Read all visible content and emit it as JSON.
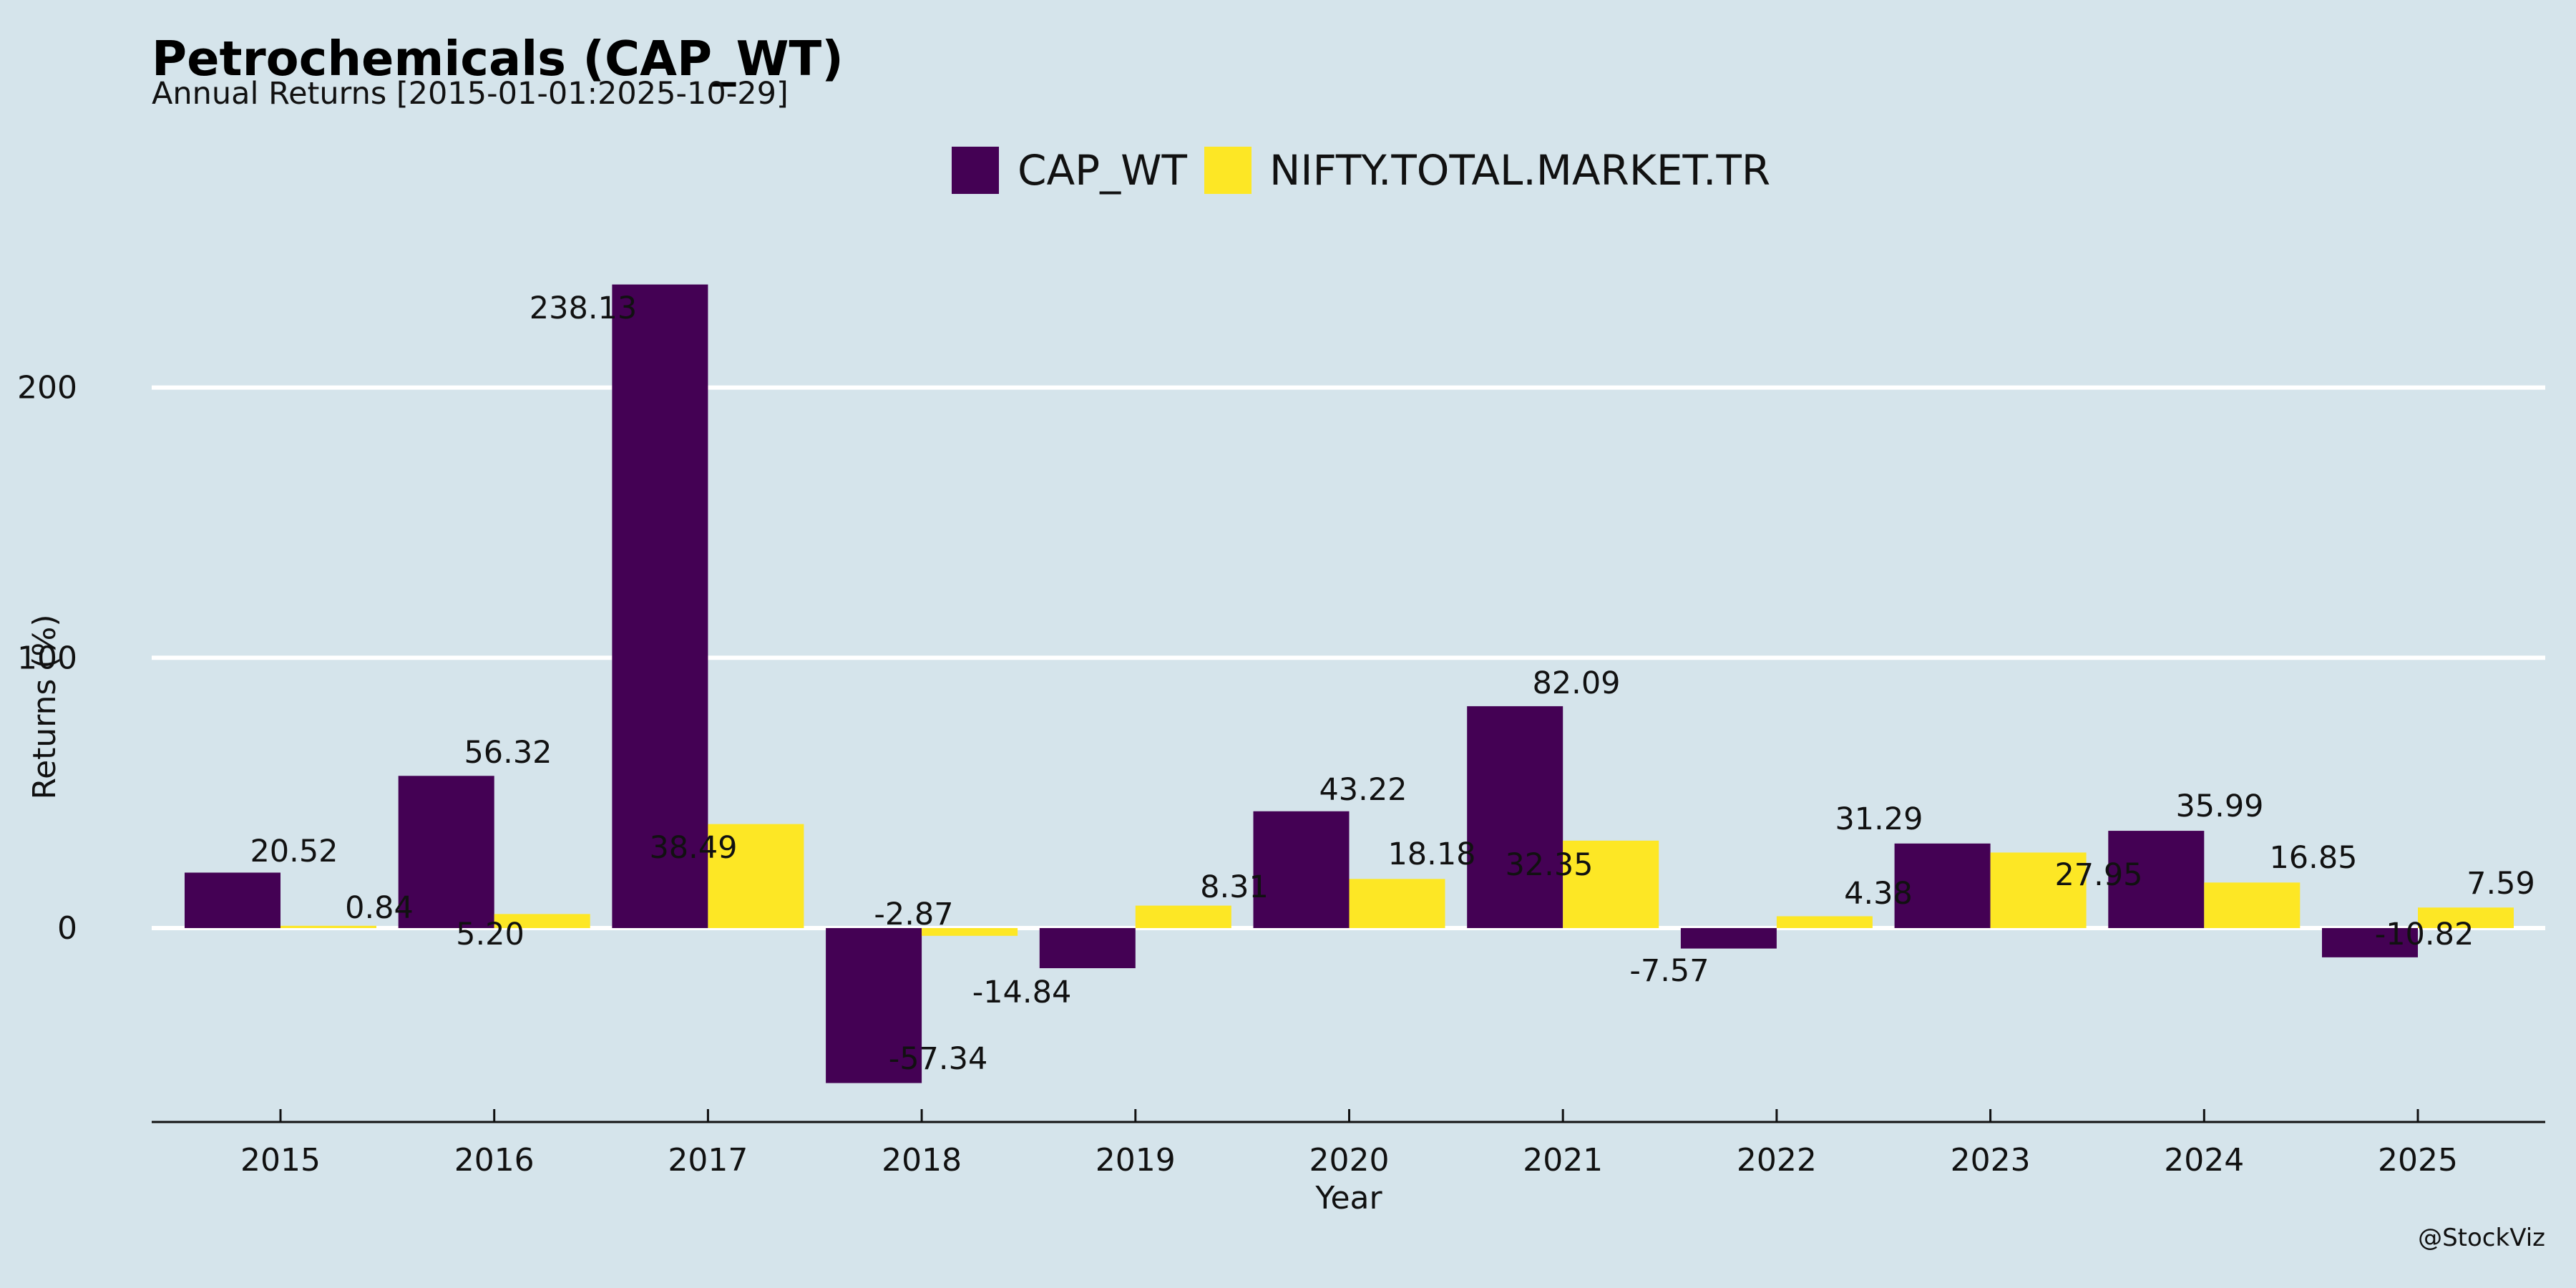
{
  "chart_data": {
    "type": "bar",
    "title": "Petrochemicals (CAP_WT)",
    "subtitle": "Annual Returns [2015-01-01:2025-10-29]",
    "xlabel": "Year",
    "ylabel": "Returns (%)",
    "credit": "@StockViz",
    "categories": [
      "2015",
      "2016",
      "2017",
      "2018",
      "2019",
      "2020",
      "2021",
      "2022",
      "2023",
      "2024",
      "2025"
    ],
    "ylim": [
      -72,
      260
    ],
    "yticks": [
      0,
      100,
      200
    ],
    "ytick_labels": [
      "0",
      "100",
      "200"
    ],
    "grid": "horizontal",
    "legend_position": "top-center",
    "series": [
      {
        "name": "CAP_WT",
        "color": "#440154",
        "values": [
          20.52,
          56.32,
          238.13,
          -57.34,
          -14.84,
          43.22,
          82.09,
          -7.57,
          31.29,
          35.99,
          -10.82
        ],
        "labels": [
          "20.52",
          "56.32",
          "238.13",
          "-57.34",
          "-14.84",
          "43.22",
          "82.09",
          "-7.57",
          "31.29",
          "35.99",
          "-10.82"
        ]
      },
      {
        "name": "NIFTY.TOTAL.MARKET.TR",
        "color": "#fde725",
        "values": [
          0.84,
          5.2,
          38.49,
          -2.87,
          8.31,
          18.18,
          32.35,
          4.38,
          27.95,
          16.85,
          7.59
        ],
        "labels": [
          "0.84",
          "5.20",
          "38.49",
          "-2.87",
          "8.31",
          "18.18",
          "32.35",
          "4.38",
          "27.95",
          "16.85",
          "7.59"
        ]
      }
    ]
  }
}
